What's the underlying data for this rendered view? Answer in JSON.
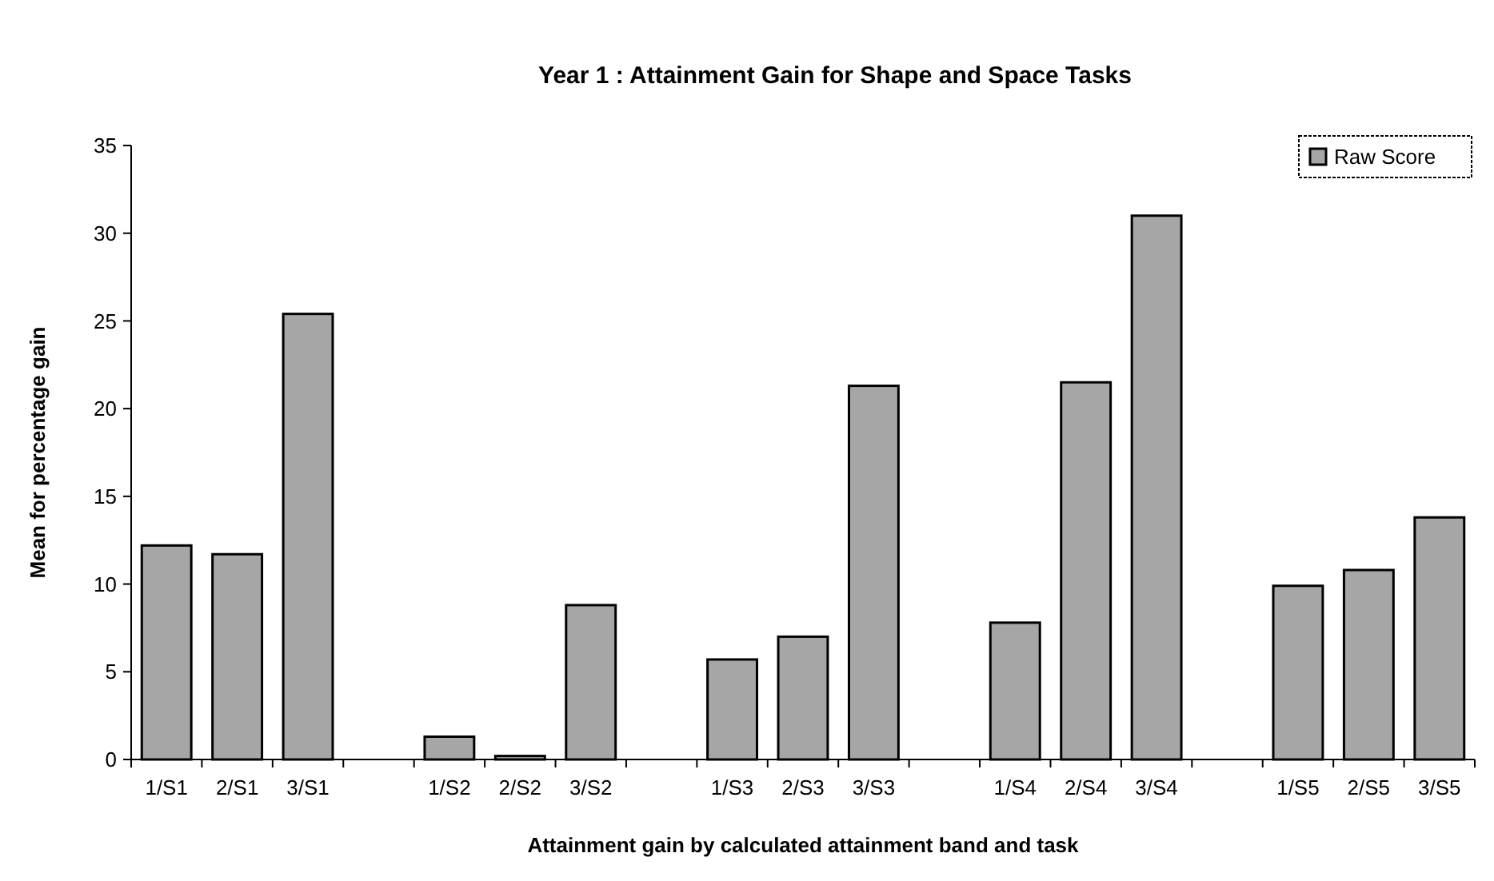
{
  "chart_data": {
    "type": "bar",
    "title": "Year 1 : Attainment Gain for Shape and Space Tasks",
    "xlabel": "Attainment gain by calculated attainment band and task",
    "ylabel": "Mean for percentage gain",
    "categories": [
      "1/S1",
      "2/S1",
      "3/S1",
      null,
      "1/S2",
      "2/S2",
      "3/S2",
      null,
      "1/S3",
      "2/S3",
      "3/S3",
      null,
      "1/S4",
      "2/S4",
      "3/S4",
      null,
      "1/S5",
      "2/S5",
      "3/S5"
    ],
    "series": [
      {
        "name": "Raw Score",
        "color": "#a6a6a6",
        "values": [
          12.2,
          11.7,
          25.4,
          null,
          1.3,
          0.2,
          8.8,
          null,
          5.7,
          7.0,
          21.3,
          null,
          7.8,
          21.5,
          31.0,
          null,
          9.9,
          10.8,
          13.8
        ]
      }
    ],
    "ylim": [
      0,
      35
    ],
    "yticks": [
      0,
      5,
      10,
      15,
      20,
      25,
      30,
      35
    ],
    "grid": false,
    "legend": "top right"
  }
}
